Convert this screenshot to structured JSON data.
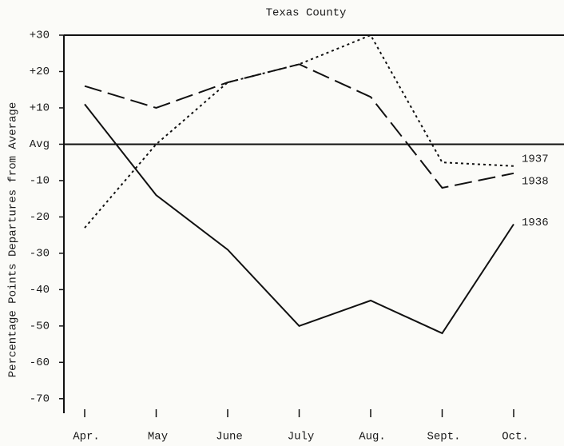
{
  "chart_data": {
    "type": "line",
    "title": "Texas County",
    "y_label": "Percentage Points Departures from Average",
    "categories": [
      "Apr.",
      "May",
      "June",
      "July",
      "Aug.",
      "Sept.",
      "Oct."
    ],
    "series": [
      {
        "name": "1936",
        "color": "#111111",
        "style": "solid",
        "values": [
          11,
          -14,
          -29,
          -50,
          -43,
          -52,
          -22
        ]
      },
      {
        "name": "1937",
        "color": "#111111",
        "style": "dotted",
        "values": [
          -23,
          0,
          17,
          22,
          30,
          -5,
          -6
        ]
      },
      {
        "name": "1938",
        "color": "#111111",
        "style": "dashed",
        "values": [
          16,
          10,
          17,
          22,
          13,
          -12,
          -8
        ]
      }
    ],
    "ylim": [
      -74,
      30
    ],
    "yticks": [
      {
        "value": 30,
        "label": "+30"
      },
      {
        "value": 20,
        "label": "+20"
      },
      {
        "value": 10,
        "label": "+10"
      },
      {
        "value": 0,
        "label": "Avg"
      },
      -10,
      -20,
      -30,
      -40,
      -50,
      -60,
      -70
    ],
    "hlines": [
      30,
      0
    ]
  }
}
